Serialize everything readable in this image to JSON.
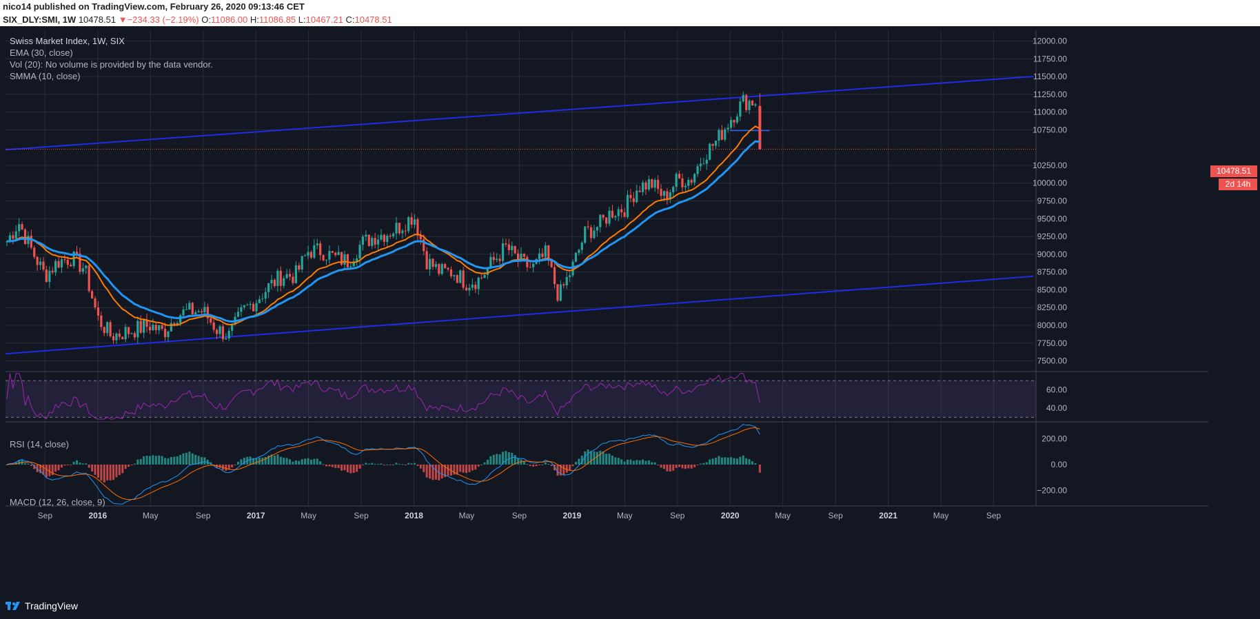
{
  "header": {
    "line1": "nico14 published on TradingView.com, February 26, 2020 09:13:46 CET",
    "symbol": "SIX_DLY:SMI, 1W",
    "last": "10478.51",
    "change_symbol": "▼",
    "change": "−234.33 (−2.19%)",
    "o_label": "O:",
    "o": "11086.00",
    "h_label": "H:",
    "h": "11086.85",
    "l_label": "L:",
    "l": "10467.21",
    "c_label": "C:",
    "c": "10478.51"
  },
  "legend": {
    "title": "Swiss Market Index, 1W, SIX",
    "ema": "EMA (30, close)",
    "vol": "Vol (20): No volume is provided by the data vendor.",
    "smma": "SMMA (10, close)",
    "rsi": "RSI (14, close)",
    "macd": "MACD (12, 26, close, 9)"
  },
  "price_label": "10478.51",
  "countdown_label": "2d 14h",
  "footer": {
    "brand": "TradingView"
  },
  "colors": {
    "background": "#131722",
    "grid": "#2a2e39",
    "up": "#26a69a",
    "down": "#ef5350",
    "ema": "#ff7c00",
    "smma": "#2196f3",
    "trendline": "#1c2ee8",
    "rsi": "#9c27b0",
    "macd": "#2196f3",
    "signal": "#ff6d00"
  },
  "chart_data": [
    {
      "type": "candlestick",
      "title": "Swiss Market Index, 1W, SIX",
      "ylim": [
        7350,
        12150
      ],
      "y_ticks": [
        "12000.00",
        "11750.00",
        "11500.00",
        "11250.00",
        "11000.00",
        "10750.00",
        "10250.00",
        "10000.00",
        "9750.00",
        "9500.00",
        "9250.00",
        "9000.00",
        "8750.00",
        "8500.00",
        "8250.00",
        "8000.00",
        "7750.00",
        "7500.00"
      ],
      "x_ticks": [
        "Sep",
        "2016",
        "May",
        "Sep",
        "2017",
        "May",
        "Sep",
        "2018",
        "May",
        "Sep",
        "2019",
        "May",
        "Sep",
        "2020",
        "May",
        "Sep",
        "2021",
        "May",
        "Sep"
      ],
      "anchors": [
        [
          "2015-06",
          9150
        ],
        [
          "2015-07",
          9450
        ],
        [
          "2015-08",
          9050
        ],
        [
          "2015-09",
          8700
        ],
        [
          "2015-10",
          8900
        ],
        [
          "2015-11",
          8950
        ],
        [
          "2015-12",
          8800
        ],
        [
          "2016-01",
          8100
        ],
        [
          "2016-02",
          7850
        ],
        [
          "2016-03",
          7900
        ],
        [
          "2016-04",
          7950
        ],
        [
          "2016-05",
          8000
        ],
        [
          "2016-06",
          7900
        ],
        [
          "2016-07",
          8150
        ],
        [
          "2016-08",
          8200
        ],
        [
          "2016-09",
          8200
        ],
        [
          "2016-10",
          7950
        ],
        [
          "2016-11",
          7850
        ],
        [
          "2016-12",
          8200
        ],
        [
          "2017-01",
          8350
        ],
        [
          "2017-02",
          8550
        ],
        [
          "2017-03",
          8700
        ],
        [
          "2017-04",
          8700
        ],
        [
          "2017-05",
          9050
        ],
        [
          "2017-06",
          9050
        ],
        [
          "2017-07",
          8950
        ],
        [
          "2017-08",
          8900
        ],
        [
          "2017-09",
          9150
        ],
        [
          "2017-10",
          9250
        ],
        [
          "2017-11",
          9300
        ],
        [
          "2017-12",
          9400
        ],
        [
          "2018-01",
          9550
        ],
        [
          "2018-02",
          8900
        ],
        [
          "2018-03",
          8750
        ],
        [
          "2018-04",
          8750
        ],
        [
          "2018-05",
          8600
        ],
        [
          "2018-06",
          8650
        ],
        [
          "2018-07",
          8900
        ],
        [
          "2018-08",
          9100
        ],
        [
          "2018-09",
          8900
        ],
        [
          "2018-10",
          8800
        ],
        [
          "2018-11",
          9000
        ],
        [
          "2018-12",
          8400
        ],
        [
          "2019-01",
          8800
        ],
        [
          "2019-02",
          9300
        ],
        [
          "2019-03",
          9400
        ],
        [
          "2019-04",
          9600
        ],
        [
          "2019-05",
          9650
        ],
        [
          "2019-06",
          9950
        ],
        [
          "2019-07",
          10000
        ],
        [
          "2019-08",
          9800
        ],
        [
          "2019-09",
          10050
        ],
        [
          "2019-10",
          10050
        ],
        [
          "2019-11",
          10400
        ],
        [
          "2019-12",
          10600
        ],
        [
          "2020-01",
          10900
        ],
        [
          "2020-02",
          11150
        ]
      ],
      "last_candle": {
        "open": 11086.0,
        "high": 11086.85,
        "low": 10467.21,
        "close": 10478.51
      },
      "trendlines": [
        {
          "from": [
            "2015-06",
            10470
          ],
          "to": [
            "2021-12",
            11500
          ]
        },
        {
          "from": [
            "2015-06",
            7600
          ],
          "to": [
            "2021-12",
            8690
          ]
        }
      ],
      "horizontal_line": {
        "value": 10740,
        "from": "2020-01",
        "to": "2020-04"
      },
      "last_price_line": 10478.51
    },
    {
      "type": "line",
      "title": "RSI (14, close)",
      "ylim": [
        25,
        80
      ],
      "y_ticks": [
        "60.00",
        "40.00"
      ],
      "bands": [
        70,
        30
      ]
    },
    {
      "type": "histogram",
      "title": "MACD (12, 26, close, 9)",
      "ylim": [
        -320,
        330
      ],
      "y_ticks": [
        "200.00",
        "0.00",
        "−200.00"
      ]
    }
  ]
}
